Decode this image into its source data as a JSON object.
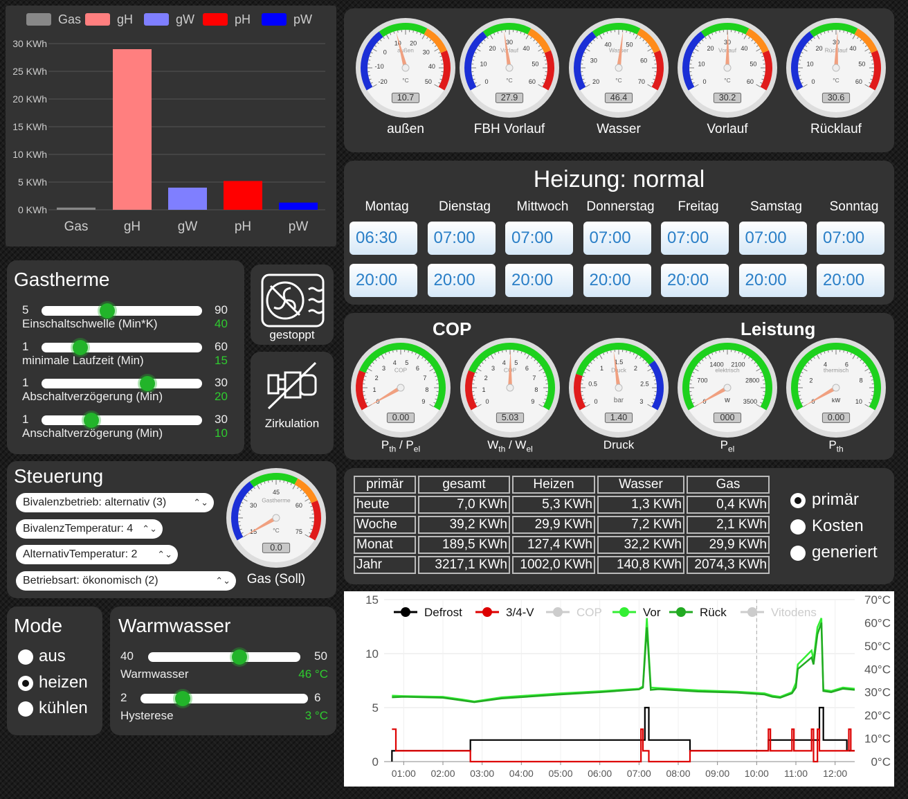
{
  "energy_bars": {
    "legend": [
      {
        "name": "Gas",
        "color": "#888888"
      },
      {
        "name": "gH",
        "color": "#ff7f7f"
      },
      {
        "name": "gW",
        "color": "#7f7fff"
      },
      {
        "name": "pH",
        "color": "#ff0000"
      },
      {
        "name": "pW",
        "color": "#0000ff"
      }
    ],
    "y_ticks": [
      "0 KWh",
      "5 KWh",
      "10 KWh",
      "15 KWh",
      "20 KWh",
      "25 KWh",
      "30 KWh"
    ]
  },
  "chart_data": [
    {
      "type": "bar",
      "categories": [
        "Gas",
        "gH",
        "gW",
        "pH",
        "pW"
      ],
      "values": [
        0.4,
        29.0,
        4.0,
        5.2,
        1.3
      ],
      "colors": [
        "#888888",
        "#ff7f7f",
        "#7f7fff",
        "#ff0000",
        "#0000ff"
      ],
      "ylabel": "",
      "ylim": [
        0,
        30
      ],
      "grid": true,
      "legend": "top"
    },
    {
      "type": "line",
      "x_ticks": [
        "01:00",
        "02:00",
        "03:00",
        "04:00",
        "05:00",
        "06:00",
        "07:00",
        "08:00",
        "09:00",
        "10:00",
        "11:00",
        "12:00"
      ],
      "y_ticks_left": [
        "0",
        "5",
        "10",
        "15"
      ],
      "y_ticks_right": [
        "0°C",
        "10°C",
        "20°C",
        "30°C",
        "40°C",
        "50°C",
        "60°C",
        "70°C"
      ],
      "ylim": [
        0,
        15
      ],
      "y2lim": [
        0,
        70
      ],
      "legend": "top",
      "series": [
        {
          "name": "Defrost",
          "color": "#000000",
          "axis": "left",
          "points": [
            [
              0.7,
              0
            ],
            [
              0.7,
              1
            ],
            [
              2.7,
              1
            ],
            [
              2.7,
              2
            ],
            [
              7.15,
              2
            ],
            [
              7.15,
              5
            ],
            [
              7.25,
              5
            ],
            [
              7.25,
              2
            ],
            [
              8.3,
              2
            ],
            [
              8.3,
              1
            ],
            [
              10.3,
              1
            ],
            [
              10.3,
              2
            ],
            [
              11.6,
              2
            ],
            [
              11.6,
              5
            ],
            [
              11.7,
              5
            ],
            [
              11.7,
              2
            ],
            [
              12.3,
              2
            ],
            [
              12.3,
              1
            ],
            [
              12.5,
              1
            ]
          ]
        },
        {
          "name": "3/4-V",
          "color": "#dd0000",
          "axis": "left",
          "points": [
            [
              0.7,
              3
            ],
            [
              0.8,
              3
            ],
            [
              0.8,
              1
            ],
            [
              2.7,
              1
            ],
            [
              2.7,
              0
            ],
            [
              7.05,
              0
            ],
            [
              7.05,
              3
            ],
            [
              7.1,
              3
            ],
            [
              7.1,
              1
            ],
            [
              7.25,
              1
            ],
            [
              7.25,
              0
            ],
            [
              8.3,
              0
            ],
            [
              8.3,
              1
            ],
            [
              10.3,
              1
            ],
            [
              10.3,
              3
            ],
            [
              10.35,
              3
            ],
            [
              10.35,
              1
            ],
            [
              10.9,
              1
            ],
            [
              10.9,
              3
            ],
            [
              10.95,
              3
            ],
            [
              10.95,
              1
            ],
            [
              11.4,
              1
            ],
            [
              11.4,
              3
            ],
            [
              11.45,
              3
            ],
            [
              11.45,
              0
            ],
            [
              11.55,
              0
            ],
            [
              11.55,
              3
            ],
            [
              11.6,
              3
            ],
            [
              11.6,
              1
            ],
            [
              12.35,
              1
            ],
            [
              12.35,
              3
            ],
            [
              12.4,
              3
            ],
            [
              12.4,
              1
            ],
            [
              12.5,
              1
            ]
          ]
        },
        {
          "name": "COP",
          "color": "#cccccc",
          "axis": "left",
          "hidden": true,
          "points": []
        },
        {
          "name": "Vor",
          "color": "#33ee33",
          "axis": "right",
          "points": [
            [
              0.7,
              28.5
            ],
            [
              1.0,
              28.3
            ],
            [
              2.0,
              28.0
            ],
            [
              2.5,
              26.8
            ],
            [
              2.8,
              26.0
            ],
            [
              3.5,
              27.8
            ],
            [
              5.0,
              29.5
            ],
            [
              6.0,
              30.4
            ],
            [
              7.0,
              31.5
            ],
            [
              7.1,
              32.5
            ],
            [
              7.2,
              62
            ],
            [
              7.3,
              32
            ],
            [
              7.5,
              31.8
            ],
            [
              8.5,
              30.8
            ],
            [
              9.5,
              30.2
            ],
            [
              10.2,
              29.5
            ],
            [
              10.4,
              28.5
            ],
            [
              10.6,
              28.0
            ],
            [
              10.9,
              30.0
            ],
            [
              11.0,
              34.0
            ],
            [
              11.05,
              42
            ],
            [
              11.4,
              48
            ],
            [
              11.45,
              44
            ],
            [
              11.55,
              58
            ],
            [
              11.65,
              62
            ],
            [
              11.7,
              31
            ],
            [
              11.9,
              30.5
            ],
            [
              12.2,
              32
            ],
            [
              12.5,
              31.5
            ]
          ]
        },
        {
          "name": "Rück",
          "color": "#22aa22",
          "axis": "right",
          "points": [
            [
              0.7,
              27.8
            ],
            [
              1.0,
              28.0
            ],
            [
              2.0,
              27.6
            ],
            [
              2.5,
              26.4
            ],
            [
              2.8,
              25.7
            ],
            [
              3.5,
              27.3
            ],
            [
              5.0,
              29.0
            ],
            [
              6.0,
              30.0
            ],
            [
              7.0,
              31.2
            ],
            [
              7.1,
              32.0
            ],
            [
              7.2,
              58
            ],
            [
              7.3,
              31
            ],
            [
              7.5,
              31.3
            ],
            [
              8.5,
              30.3
            ],
            [
              9.5,
              29.8
            ],
            [
              10.2,
              29.0
            ],
            [
              10.4,
              28.0
            ],
            [
              10.6,
              27.6
            ],
            [
              10.9,
              29.5
            ],
            [
              11.0,
              32
            ],
            [
              11.05,
              40
            ],
            [
              11.4,
              45
            ],
            [
              11.45,
              42
            ],
            [
              11.55,
              55
            ],
            [
              11.65,
              60
            ],
            [
              11.7,
              30.5
            ],
            [
              11.9,
              30
            ],
            [
              12.2,
              31.5
            ],
            [
              12.5,
              31
            ]
          ]
        },
        {
          "name": "Vitodens",
          "color": "#cccccc",
          "axis": "left",
          "hidden": true,
          "points": []
        }
      ]
    }
  ],
  "gauges_top": [
    {
      "caption": "außen",
      "unit": "°C",
      "inner_label": "außen",
      "value": "10.7",
      "ticks": [
        "-20",
        "-10",
        "0",
        "10",
        "20",
        "30",
        "40",
        "50"
      ],
      "min": -20,
      "max": 50,
      "val": 10.7
    },
    {
      "caption": "FBH Vorlauf",
      "unit": "°C",
      "inner_label": "Vorlauf",
      "value": "27.9",
      "ticks": [
        "0",
        "10",
        "20",
        "30",
        "40",
        "50",
        "60"
      ],
      "min": 0,
      "max": 60,
      "val": 27.9
    },
    {
      "caption": "Wasser",
      "unit": "°C",
      "inner_label": "Wasser",
      "value": "46.4",
      "ticks": [
        "20",
        "30",
        "40",
        "50",
        "60",
        "70"
      ],
      "min": 20,
      "max": 70,
      "val": 46.4
    },
    {
      "caption": "Vorlauf",
      "unit": "°C",
      "inner_label": "Vorlauf",
      "value": "30.2",
      "ticks": [
        "0",
        "10",
        "20",
        "30",
        "40",
        "50",
        "60"
      ],
      "min": 0,
      "max": 60,
      "val": 30.2
    },
    {
      "caption": "Rücklauf",
      "unit": "°C",
      "inner_label": "Rücklauf",
      "value": "30.6",
      "ticks": [
        "0",
        "10",
        "20",
        "30",
        "40",
        "50",
        "60"
      ],
      "min": 0,
      "max": 60,
      "val": 30.6
    }
  ],
  "heating": {
    "title": "Heizung: normal",
    "days": [
      {
        "name": "Montag",
        "on": "06:30",
        "off": "20:00"
      },
      {
        "name": "Dienstag",
        "on": "07:00",
        "off": "20:00"
      },
      {
        "name": "Mittwoch",
        "on": "07:00",
        "off": "20:00"
      },
      {
        "name": "Donnerstag",
        "on": "07:00",
        "off": "20:00"
      },
      {
        "name": "Freitag",
        "on": "07:00",
        "off": "20:00"
      },
      {
        "name": "Samstag",
        "on": "07:00",
        "off": "20:00"
      },
      {
        "name": "Sonntag",
        "on": "07:00",
        "off": "20:00"
      }
    ]
  },
  "cop_panel": {
    "cop_title": "COP",
    "power_title": "Leistung",
    "gauges": [
      {
        "caption": "P",
        "sub1": "th",
        "sep": " / P",
        "sub2": "el",
        "inner_label": "COP",
        "value": "0.00",
        "ticks": [
          "0",
          "1",
          "2",
          "3",
          "4",
          "5",
          "6",
          "7",
          "8",
          "9"
        ],
        "min": 0,
        "max": 10,
        "val": 0
      },
      {
        "caption": "W",
        "sub1": "th",
        "sep": " / W",
        "sub2": "el",
        "inner_label": "COP",
        "value": "5.03",
        "ticks": [
          "0",
          "1",
          "2",
          "3",
          "4",
          "5",
          "6",
          "7",
          "8",
          "9"
        ],
        "min": 0,
        "max": 10,
        "val": 5.03
      },
      {
        "caption": "Druck",
        "sub1": "",
        "sep": "",
        "sub2": "",
        "inner_label": "Druck",
        "unit": "bar",
        "value": "1.40",
        "ticks": [
          "0",
          "0.5",
          "1",
          "1.5",
          "2",
          "2.5",
          "3"
        ],
        "min": 0,
        "max": 3,
        "val": 1.4
      },
      {
        "caption": "P",
        "sub1": "el",
        "sep": "",
        "sub2": "",
        "inner_label": "elektrisch",
        "unit": "W",
        "value": "000",
        "ticks": [
          "0",
          "700",
          "1400",
          "2100",
          "2800",
          "3500"
        ],
        "min": 0,
        "max": 3500,
        "val": 0
      },
      {
        "caption": "P",
        "sub1": "th",
        "sep": "",
        "sub2": "",
        "inner_label": "thermisch",
        "unit": "kW",
        "value": "0.00",
        "ticks": [
          "0",
          "2",
          "4",
          "6",
          "8",
          "10"
        ],
        "min": 0,
        "max": 10,
        "val": 0
      }
    ]
  },
  "energy_table": {
    "headers": [
      "primär",
      "gesamt",
      "Heizen",
      "Wasser",
      "Gas"
    ],
    "rows": [
      [
        "heute",
        "7,0 KWh",
        "5,3 KWh",
        "1,3 KWh",
        "0,4 KWh"
      ],
      [
        "Woche",
        "39,2 KWh",
        "29,9 KWh",
        "7,2 KWh",
        "2,1 KWh"
      ],
      [
        "Monat",
        "189,5 KWh",
        "127,4 KWh",
        "32,2 KWh",
        "29,9 KWh"
      ],
      [
        "Jahr",
        "3217,1 KWh",
        "1002,0 KWh",
        "140,8 KWh",
        "2074,3 KWh"
      ]
    ],
    "options": [
      "primär",
      "Kosten",
      "generiert"
    ],
    "selected": "primär"
  },
  "gastherme": {
    "title": "Gastherme",
    "sliders": [
      {
        "label": "Einschaltschwelle (Min*K)",
        "min": "5",
        "max": "90",
        "value": "40",
        "frac": 0.41
      },
      {
        "label": "minimale Laufzeit (Min)",
        "min": "1",
        "max": "60",
        "value": "15",
        "frac": 0.24
      },
      {
        "label": "Abschaltverzögerung (Min)",
        "min": "1",
        "max": "30",
        "value": "20",
        "frac": 0.66
      },
      {
        "label": "Anschaltverzögerung (Min)",
        "min": "1",
        "max": "30",
        "value": "10",
        "frac": 0.31
      }
    ]
  },
  "status_tiles": {
    "boiler": "gestoppt",
    "pump": "Zirkulation"
  },
  "steuerung": {
    "title": "Steuerung",
    "selects": [
      "Bivalenzbetrieb: alternativ (3)",
      "BivalenzTemperatur: 4",
      "AlternativTemperatur: 2",
      "Betriebsart: ökonomisch (2)"
    ],
    "gauge": {
      "caption": "Gas (Soll)",
      "inner_label": "Gastherme",
      "unit": "°C",
      "value": "0.0",
      "ticks": [
        "15",
        "30",
        "45",
        "60",
        "75"
      ],
      "min": 0,
      "max": 75,
      "val": 0
    }
  },
  "mode": {
    "title": "Mode",
    "options": [
      "aus",
      "heizen",
      "kühlen"
    ],
    "selected": "heizen"
  },
  "warmwasser": {
    "title": "Warmwasser",
    "sliders": [
      {
        "label": "Warmwasser",
        "min": "40",
        "max": "50",
        "value": "46 °C",
        "frac": 0.6
      },
      {
        "label": "Hysterese",
        "min": "2",
        "max": "6",
        "value": "3 °C",
        "frac": 0.25
      }
    ]
  }
}
